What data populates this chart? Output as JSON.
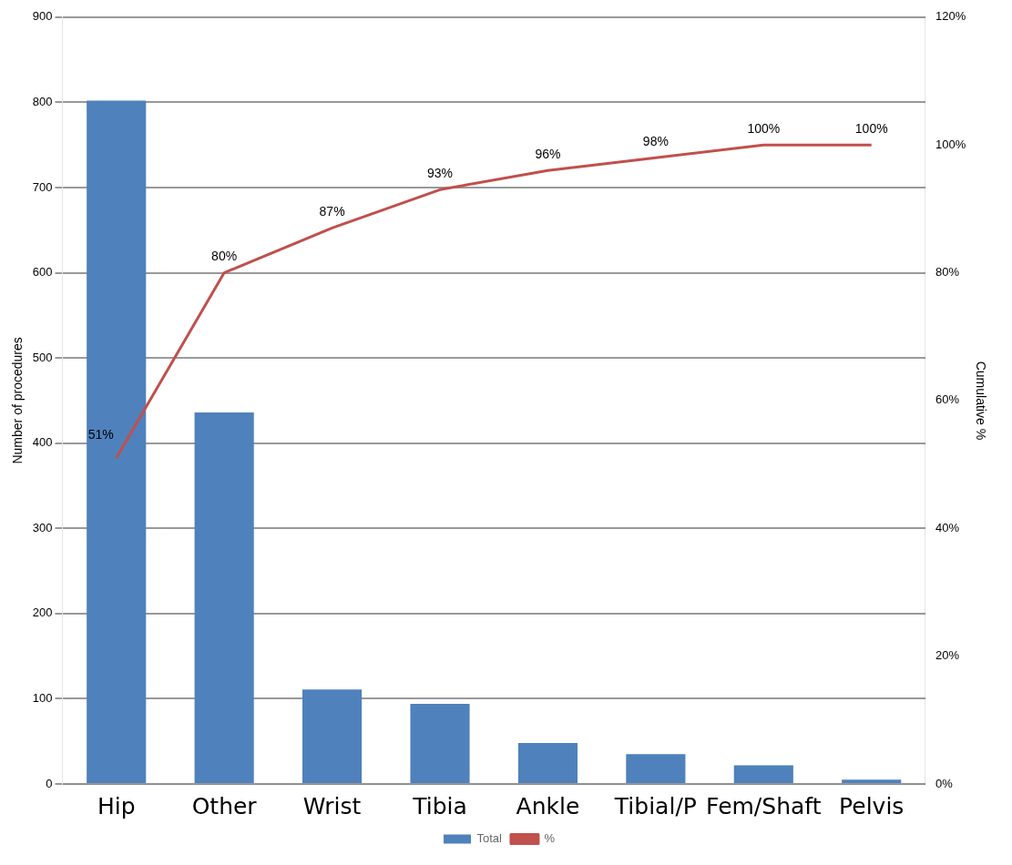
{
  "chart_data": {
    "type": "bar",
    "categories": [
      "Hip",
      "Other",
      "Wrist",
      "Tibia",
      "Ankle",
      "Tibial/P",
      "Fem/Shaft",
      "Pelvis"
    ],
    "series": [
      {
        "name": "Total",
        "color": "#4f81bd",
        "values": [
          802,
          436,
          111,
          94,
          48,
          35,
          22,
          5
        ]
      },
      {
        "name": "%",
        "type": "line",
        "axis": "y2",
        "color": "#c0504d",
        "values": [
          51,
          80,
          87,
          93,
          96,
          98,
          100,
          100
        ],
        "value_labels": [
          "51%",
          "80%",
          "87%",
          "93%",
          "96%",
          "98%",
          "100%",
          "100%"
        ]
      }
    ],
    "ylabel": "Number of procedures",
    "y2label": "Cumulative %",
    "ylim": [
      0,
      900
    ],
    "yticks": [
      0,
      100,
      200,
      300,
      400,
      500,
      600,
      700,
      800,
      900
    ],
    "y2lim": [
      0,
      120
    ],
    "y2ticks": [
      {
        "value": 0,
        "label": "0%"
      },
      {
        "value": 20,
        "label": "20%"
      },
      {
        "value": 40,
        "label": "40%"
      },
      {
        "value": 60,
        "label": "60%"
      },
      {
        "value": 80,
        "label": "80%"
      },
      {
        "value": 100,
        "label": "100%"
      },
      {
        "value": 120,
        "label": "120%"
      }
    ],
    "grid": "y",
    "legend": "bottom",
    "marker": "none",
    "line_style": "solid"
  }
}
